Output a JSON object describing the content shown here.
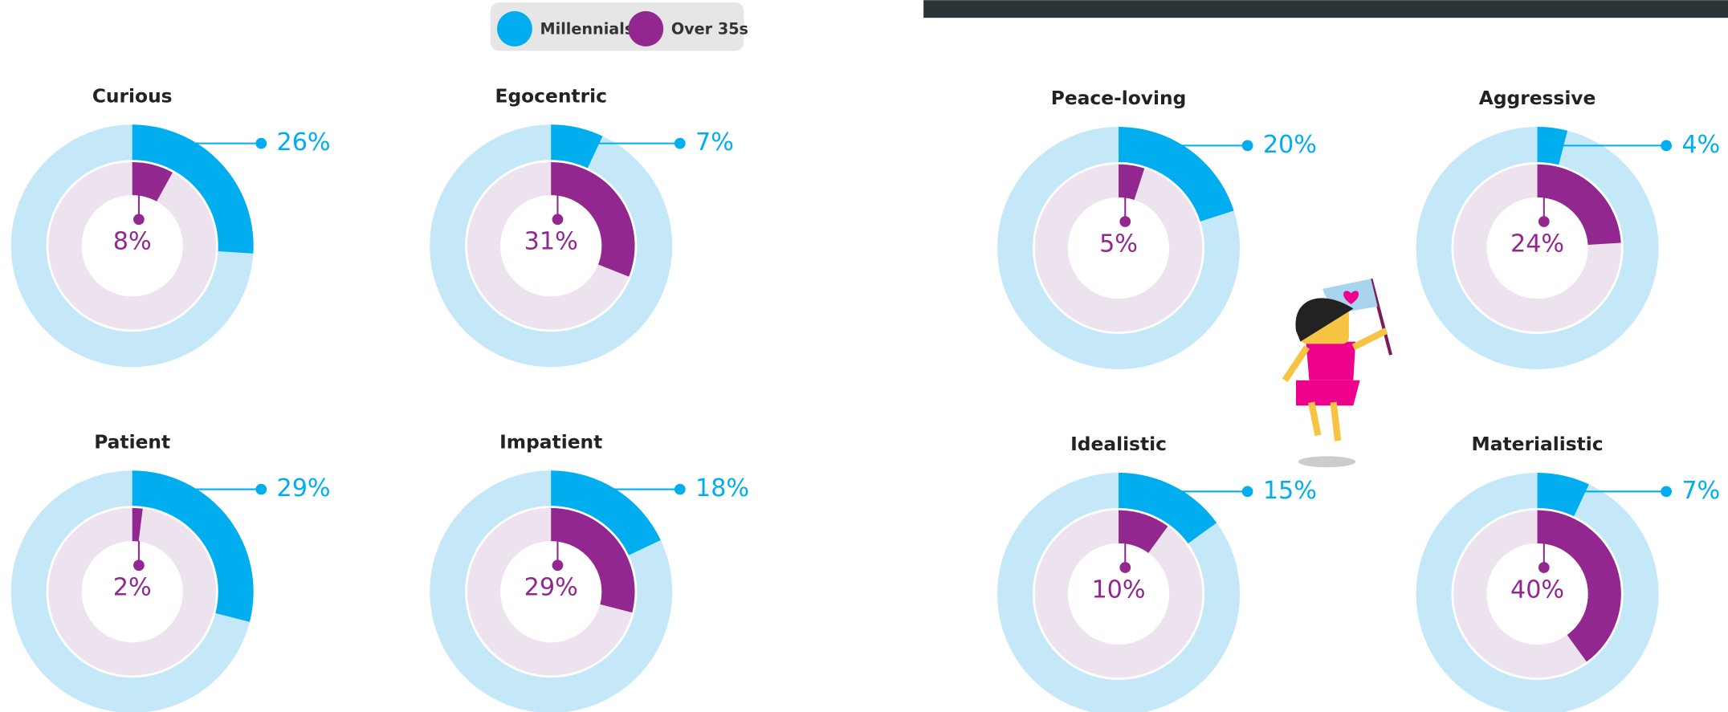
{
  "chart_data": [
    {
      "type": "donut",
      "title": "Curious",
      "series": [
        {
          "name": "Millennials",
          "color": "#00aeef",
          "values": [
            26
          ],
          "value_labels": [
            "26%"
          ]
        },
        {
          "name": "Over 35s",
          "color": "#92278f",
          "values": [
            8
          ],
          "value_labels": [
            "8%"
          ]
        }
      ]
    },
    {
      "type": "donut",
      "title": "Egocentric",
      "series": [
        {
          "name": "Millennials",
          "color": "#00aeef",
          "values": [
            7
          ],
          "value_labels": [
            "7%"
          ]
        },
        {
          "name": "Over 35s",
          "color": "#92278f",
          "values": [
            31
          ],
          "value_labels": [
            "31%"
          ]
        }
      ]
    },
    {
      "type": "donut",
      "title": "Peace-loving",
      "series": [
        {
          "name": "Millennials",
          "color": "#00aeef",
          "values": [
            20
          ],
          "value_labels": [
            "20%"
          ]
        },
        {
          "name": "Over 35s",
          "color": "#92278f",
          "values": [
            5
          ],
          "value_labels": [
            "5%"
          ]
        }
      ]
    },
    {
      "type": "donut",
      "title": "Aggressive",
      "series": [
        {
          "name": "Millennials",
          "color": "#00aeef",
          "values": [
            4
          ],
          "value_labels": [
            "4%"
          ]
        },
        {
          "name": "Over 35s",
          "color": "#92278f",
          "values": [
            24
          ],
          "value_labels": [
            "24%"
          ]
        }
      ]
    },
    {
      "type": "donut",
      "title": "Patient",
      "series": [
        {
          "name": "Millennials",
          "color": "#00aeef",
          "values": [
            29
          ],
          "value_labels": [
            "29%"
          ]
        },
        {
          "name": "Over 35s",
          "color": "#92278f",
          "values": [
            2
          ],
          "value_labels": [
            "2%"
          ]
        }
      ]
    },
    {
      "type": "donut",
      "title": "Impatient",
      "series": [
        {
          "name": "Millennials",
          "color": "#00aeef",
          "values": [
            18
          ],
          "value_labels": [
            "18%"
          ]
        },
        {
          "name": "Over 35s",
          "color": "#92278f",
          "values": [
            29
          ],
          "value_labels": [
            "29%"
          ]
        }
      ]
    },
    {
      "type": "donut",
      "title": "Idealistic",
      "series": [
        {
          "name": "Millennials",
          "color": "#00aeef",
          "values": [
            15
          ],
          "value_labels": [
            "15%"
          ]
        },
        {
          "name": "Over 35s",
          "color": "#92278f",
          "values": [
            10
          ],
          "value_labels": [
            "10%"
          ]
        }
      ]
    },
    {
      "type": "donut",
      "title": "Materialistic",
      "series": [
        {
          "name": "Millennials",
          "color": "#00aeef",
          "values": [
            7
          ],
          "value_labels": [
            "7%"
          ]
        },
        {
          "name": "Over 35s",
          "color": "#92278f",
          "values": [
            40
          ],
          "value_labels": [
            "40%"
          ]
        }
      ]
    }
  ]
}
